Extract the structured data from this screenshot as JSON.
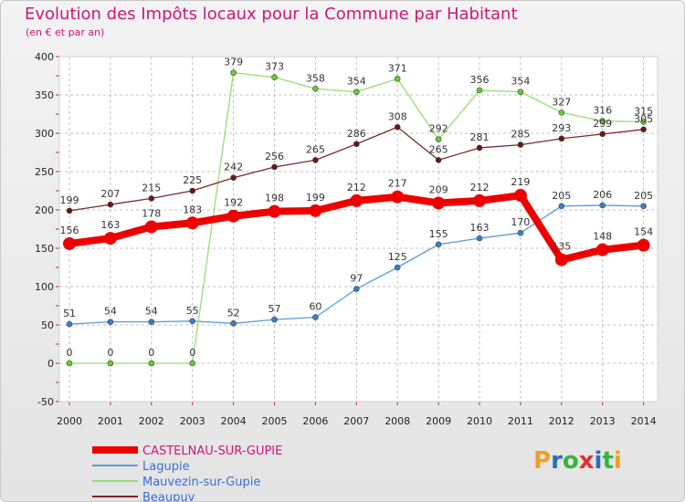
{
  "title": "Evolution des Impôts locaux pour la Commune par Habitant",
  "subtitle": "(en € et par an)",
  "brand": "Proxiti",
  "brand_colors": [
    "#f0a020",
    "#2a6fbf",
    "#3bb33b",
    "#e03030",
    "#2a6fbf",
    "#3bb33b",
    "#f0a020"
  ],
  "chart_data": {
    "type": "line",
    "title": "Evolution des Impôts locaux pour la Commune par Habitant",
    "xlabel": "",
    "ylabel": "",
    "ylim": [
      -50,
      400
    ],
    "yticks": [
      -50,
      0,
      50,
      100,
      150,
      200,
      250,
      300,
      350,
      400
    ],
    "grid": true,
    "categories": [
      "2000",
      "2001",
      "2002",
      "2003",
      "2004",
      "2005",
      "2006",
      "2007",
      "2008",
      "2009",
      "2010",
      "2011",
      "2012",
      "2013",
      "2014"
    ],
    "series": [
      {
        "name": "CASTELNAU-SUR-GUPIE",
        "color": "#ee0000",
        "bold": true,
        "values": [
          156,
          163,
          178,
          183,
          192,
          198,
          199,
          212,
          217,
          209,
          212,
          219,
          135,
          148,
          154
        ]
      },
      {
        "name": "Lagupie",
        "color": "#5b9bd5",
        "marker": "#3a7fc8",
        "bold": false,
        "values": [
          51,
          54,
          54,
          55,
          52,
          57,
          60,
          97,
          125,
          155,
          163,
          170,
          205,
          206,
          205
        ]
      },
      {
        "name": "Mauvezin-sur-Gupie",
        "color": "#99dd77",
        "marker": "#66cc33",
        "bold": false,
        "values": [
          0,
          0,
          0,
          0,
          379,
          373,
          358,
          354,
          371,
          292,
          356,
          354,
          327,
          316,
          315
        ]
      },
      {
        "name": "Beaupuy",
        "color": "#7a2a2a",
        "marker": "#6b1515",
        "bold": false,
        "values": [
          199,
          207,
          215,
          225,
          242,
          256,
          265,
          286,
          308,
          265,
          281,
          285,
          293,
          299,
          305
        ]
      }
    ],
    "legend_position": "bottom-left"
  }
}
